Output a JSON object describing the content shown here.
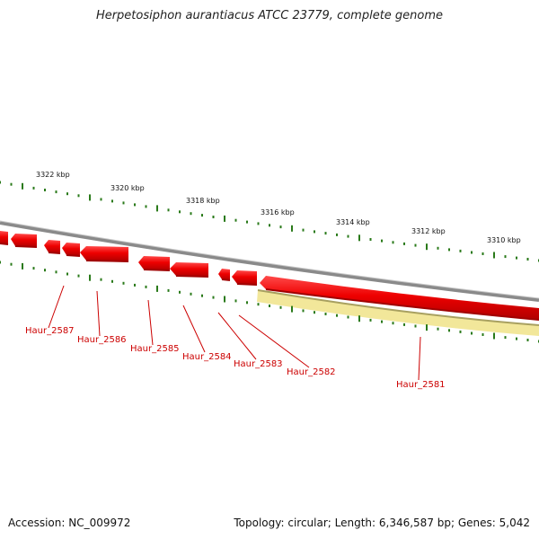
{
  "title": "Herpetosiphon aurantiacus ATCC 23779, complete genome",
  "footer": {
    "accession": "Accession: NC_009972",
    "topology": "Topology: circular; Length: 6,346,587 bp; Genes: 5,042"
  },
  "colors": {
    "backbone": "#8a8a8a",
    "gene": "#ee0000",
    "gene_label": "#cc0000",
    "tick": "#2a7a1a",
    "highlight": "#f2e79a",
    "highlight_edge": "#a8a060"
  },
  "scale_labels": [
    "3322 kbp",
    "3320 kbp",
    "3318 kbp",
    "3316 kbp",
    "3314 kbp",
    "3312 kbp",
    "3310 kbp"
  ],
  "genes": [
    {
      "label": "Haur_2587"
    },
    {
      "label": "Haur_2586"
    },
    {
      "label": "Haur_2585"
    },
    {
      "label": "Haur_2584"
    },
    {
      "label": "Haur_2583"
    },
    {
      "label": "Haur_2582"
    },
    {
      "label": "Haur_2581"
    }
  ]
}
